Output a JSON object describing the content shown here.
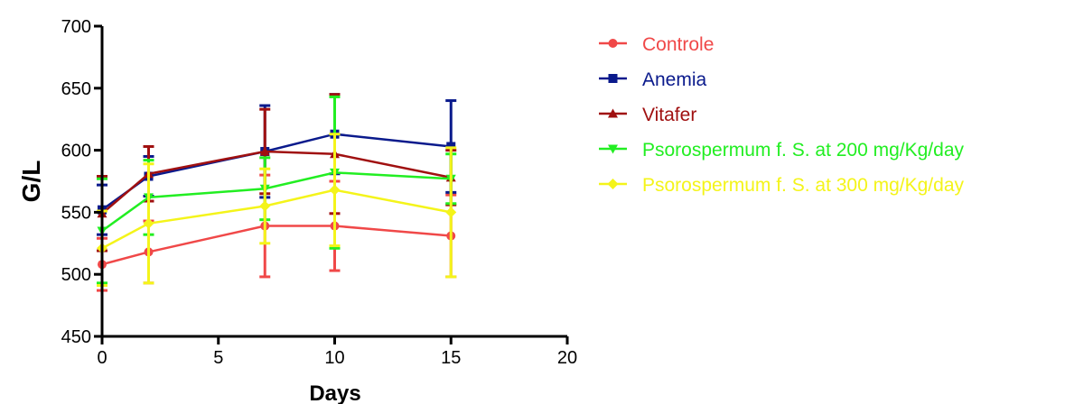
{
  "chart_data": {
    "type": "line",
    "xlabel": "Days",
    "ylabel": "G/L",
    "xlim": [
      0,
      20
    ],
    "ylim": [
      450,
      700
    ],
    "x_ticks": [
      0,
      5,
      10,
      15,
      20
    ],
    "y_ticks": [
      450,
      500,
      550,
      600,
      650,
      700
    ],
    "x": [
      0,
      2,
      7,
      10,
      15
    ],
    "grid": false,
    "legend_position": "right",
    "series": [
      {
        "name": "Controle",
        "color": "#f04848",
        "marker": "circle",
        "values": [
          508,
          518,
          539,
          539,
          531
        ],
        "error": [
          21,
          25,
          41,
          36,
          33
        ]
      },
      {
        "name": "Anemia",
        "color": "#0a1a8c",
        "marker": "square",
        "values": [
          552,
          579,
          599,
          613,
          603
        ],
        "error": [
          20,
          16,
          37,
          32,
          37
        ]
      },
      {
        "name": "Vitafer",
        "color": "#a01010",
        "marker": "triangle-up",
        "values": [
          549,
          581,
          599,
          597,
          578
        ],
        "error": [
          30,
          22,
          34,
          48,
          22
        ]
      },
      {
        "name": "Psorospermum f. S. at 200 mg/Kg/day",
        "color": "#22ee22",
        "marker": "triangle-down",
        "values": [
          535,
          562,
          569,
          582,
          577
        ],
        "error": [
          42,
          30,
          25,
          61,
          20
        ]
      },
      {
        "name": "Psorospermum f. S. at 300 mg/Kg/day",
        "color": "#f4f41a",
        "marker": "diamond",
        "values": [
          521,
          541,
          555,
          568,
          550
        ],
        "error": [
          30,
          48,
          30,
          45,
          52
        ]
      }
    ]
  }
}
